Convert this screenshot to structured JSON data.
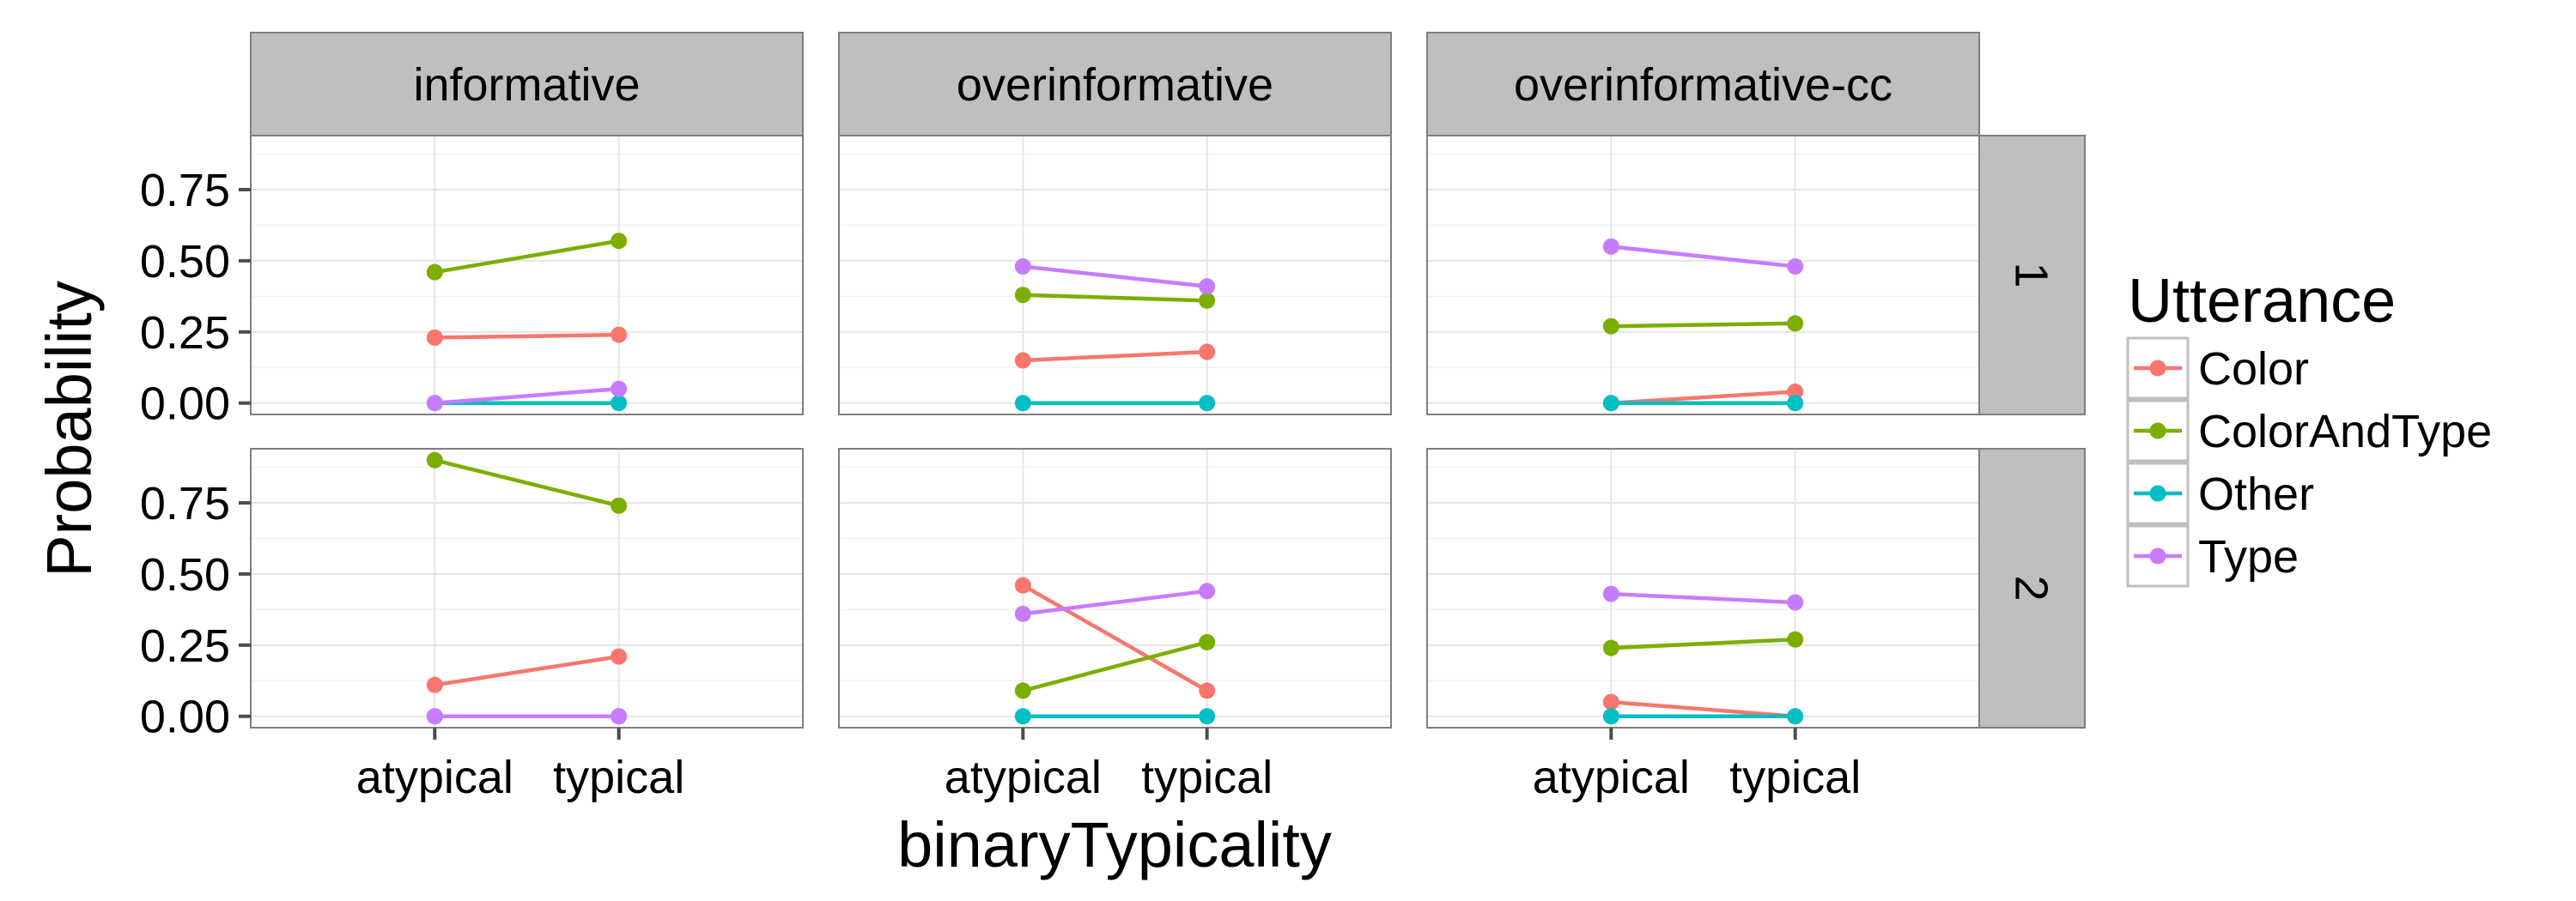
{
  "chart_data": {
    "type": "line",
    "xlabel": "binaryTypicality",
    "ylabel": "Probability",
    "categories": [
      "atypical",
      "typical"
    ],
    "ylim": [
      -0.04,
      0.94
    ],
    "yticks": [
      0.0,
      0.25,
      0.5,
      0.75
    ],
    "ytick_labels": [
      "0.00",
      "0.25",
      "0.50",
      "0.75"
    ],
    "grid": true,
    "col_facets": [
      "informative",
      "overinformative",
      "overinformative-cc"
    ],
    "row_facets": [
      "1",
      "2"
    ],
    "legend": {
      "title": "Utterance",
      "position": "right",
      "entries": [
        "Color",
        "ColorAndType",
        "Other",
        "Type"
      ]
    },
    "colors": {
      "Color": "#F8766D",
      "ColorAndType": "#7CAE00",
      "Other": "#00BFC4",
      "Type": "#C77CFF"
    },
    "panels": [
      {
        "col": "informative",
        "row": "1",
        "series": [
          {
            "name": "Color",
            "values": [
              0.23,
              0.24
            ]
          },
          {
            "name": "ColorAndType",
            "values": [
              0.46,
              0.57
            ]
          },
          {
            "name": "Other",
            "values": [
              0.0,
              0.0
            ]
          },
          {
            "name": "Type",
            "values": [
              0.0,
              0.05
            ]
          }
        ]
      },
      {
        "col": "overinformative",
        "row": "1",
        "series": [
          {
            "name": "Color",
            "values": [
              0.15,
              0.18
            ]
          },
          {
            "name": "ColorAndType",
            "values": [
              0.38,
              0.36
            ]
          },
          {
            "name": "Other",
            "values": [
              0.0,
              0.0
            ]
          },
          {
            "name": "Type",
            "values": [
              0.48,
              0.41
            ]
          }
        ]
      },
      {
        "col": "overinformative-cc",
        "row": "1",
        "series": [
          {
            "name": "Color",
            "values": [
              0.0,
              0.04
            ]
          },
          {
            "name": "ColorAndType",
            "values": [
              0.27,
              0.28
            ]
          },
          {
            "name": "Other",
            "values": [
              0.0,
              0.0
            ]
          },
          {
            "name": "Type",
            "values": [
              0.55,
              0.48
            ]
          }
        ]
      },
      {
        "col": "informative",
        "row": "2",
        "series": [
          {
            "name": "Color",
            "values": [
              0.11,
              0.21
            ]
          },
          {
            "name": "ColorAndType",
            "values": [
              0.9,
              0.74
            ]
          },
          {
            "name": "Other",
            "values": [
              0.0,
              0.0
            ]
          },
          {
            "name": "Type",
            "values": [
              0.0,
              0.0
            ]
          }
        ]
      },
      {
        "col": "overinformative",
        "row": "2",
        "series": [
          {
            "name": "Color",
            "values": [
              0.46,
              0.09
            ]
          },
          {
            "name": "ColorAndType",
            "values": [
              0.09,
              0.26
            ]
          },
          {
            "name": "Other",
            "values": [
              0.0,
              0.0
            ]
          },
          {
            "name": "Type",
            "values": [
              0.36,
              0.44
            ]
          }
        ]
      },
      {
        "col": "overinformative-cc",
        "row": "2",
        "series": [
          {
            "name": "Color",
            "values": [
              0.05,
              0.0
            ]
          },
          {
            "name": "ColorAndType",
            "values": [
              0.24,
              0.27
            ]
          },
          {
            "name": "Other",
            "values": [
              0.0,
              0.0
            ]
          },
          {
            "name": "Type",
            "values": [
              0.43,
              0.4
            ]
          }
        ]
      }
    ]
  }
}
